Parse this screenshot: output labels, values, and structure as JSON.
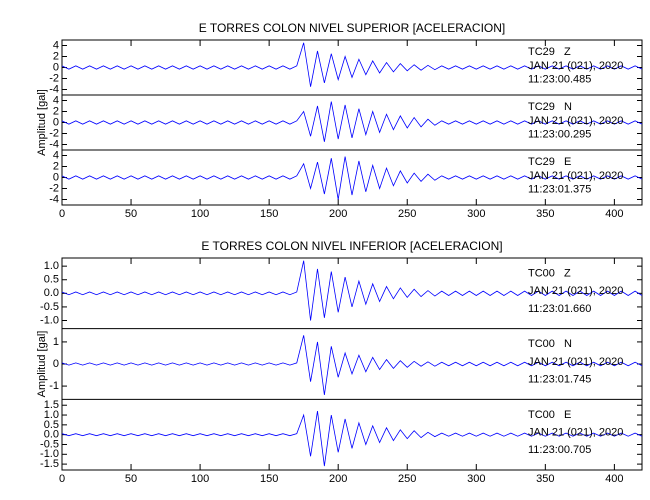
{
  "chart_data": [
    {
      "type": "line",
      "title": "E TORRES COLON NIVEL SUPERIOR [ACELERACION]",
      "ylabel": "Amplitud [gal]",
      "x": [
        0,
        5,
        10,
        15,
        20,
        25,
        30,
        35,
        40,
        45,
        50,
        55,
        60,
        65,
        70,
        75,
        80,
        85,
        90,
        95,
        100,
        105,
        110,
        115,
        120,
        125,
        130,
        135,
        140,
        145,
        150,
        155,
        160,
        165,
        170,
        175,
        180,
        185,
        190,
        195,
        200,
        205,
        210,
        215,
        220,
        225,
        230,
        235,
        240,
        245,
        250,
        255,
        260,
        265,
        270,
        275,
        280,
        285,
        290,
        295,
        300,
        305,
        310,
        315,
        320,
        325,
        330,
        335,
        340,
        345,
        350,
        355,
        360,
        365,
        370,
        375,
        380,
        385,
        390,
        395,
        400,
        405,
        410,
        415,
        420
      ],
      "xlim": [
        0,
        420
      ],
      "xticks": [
        0,
        50,
        100,
        150,
        200,
        250,
        300,
        350,
        400
      ],
      "panels": [
        {
          "station": "TC29",
          "component": "Z",
          "date": "JAN 21 (021), 2020",
          "time": "11:23:00.485",
          "color": "#0000ff",
          "ylim": [
            -5,
            5
          ],
          "yticks": [
            -4,
            -2,
            0,
            2,
            4
          ],
          "values": [
            0.3,
            -0.3,
            0.3,
            -0.3,
            0.3,
            -0.3,
            0.3,
            -0.3,
            0.3,
            -0.3,
            0.3,
            -0.3,
            0.3,
            -0.3,
            0.3,
            -0.3,
            0.3,
            -0.3,
            0.3,
            -0.3,
            0.3,
            -0.3,
            0.3,
            -0.3,
            0.3,
            -0.3,
            0.3,
            -0.3,
            0.3,
            -0.3,
            0.3,
            -0.3,
            0.3,
            -0.3,
            0.3,
            4.5,
            -3.5,
            3,
            -2.8,
            2.5,
            -2.2,
            2,
            -1.8,
            1.5,
            -1.3,
            1.2,
            -1,
            0.9,
            -0.8,
            0.7,
            -0.6,
            0.5,
            -0.5,
            0.4,
            -0.4,
            0.3,
            -0.3,
            0.3,
            -0.3,
            0.3,
            -0.3,
            0.3,
            -0.3,
            0.3,
            -0.3,
            0.3,
            -0.3,
            0.3,
            -0.3,
            0.3,
            -0.3,
            0.3,
            -0.3,
            0.3,
            -0.3,
            0.3,
            -0.3,
            0.3,
            -0.3,
            0.3,
            -0.3,
            0.3,
            -0.3,
            0.3,
            -0.3
          ]
        },
        {
          "station": "TC29",
          "component": "N",
          "date": "JAN 21 (021), 2020",
          "time": "11:23:00.295",
          "color": "#0000ff",
          "ylim": [
            -5,
            5
          ],
          "yticks": [
            -4,
            -2,
            0,
            2,
            4
          ],
          "values": [
            0.3,
            -0.3,
            0.3,
            -0.3,
            0.3,
            -0.3,
            0.3,
            -0.3,
            0.3,
            -0.3,
            0.3,
            -0.3,
            0.3,
            -0.3,
            0.3,
            -0.3,
            0.3,
            -0.3,
            0.3,
            -0.3,
            0.3,
            -0.3,
            0.3,
            -0.3,
            0.3,
            -0.3,
            0.3,
            -0.3,
            0.3,
            -0.3,
            0.3,
            -0.3,
            0.3,
            -0.3,
            0.3,
            2,
            -2.5,
            3,
            -3.5,
            3.8,
            -3,
            3.2,
            -2.8,
            2.5,
            -2.2,
            2,
            -1.8,
            1.5,
            -1.3,
            1.2,
            -1,
            0.9,
            -0.8,
            0.6,
            -0.5,
            0.3,
            -0.3,
            0.3,
            -0.3,
            0.3,
            -0.3,
            0.3,
            -0.3,
            0.3,
            -0.3,
            0.3,
            -0.3,
            0.3,
            -0.3,
            0.3,
            -0.3,
            0.3,
            -0.3,
            0.3,
            -0.3,
            0.3,
            -0.3,
            0.3,
            -0.3,
            0.3,
            -0.3,
            0.3,
            -0.3,
            0.3,
            -0.3
          ]
        },
        {
          "station": "TC29",
          "component": "E",
          "date": "JAN 21 (021), 2020",
          "time": "11:23:01.375",
          "color": "#0000ff",
          "ylim": [
            -5,
            5
          ],
          "yticks": [
            -4,
            -2,
            0,
            2,
            4
          ],
          "values": [
            0.3,
            -0.3,
            0.3,
            -0.3,
            0.3,
            -0.3,
            0.3,
            -0.3,
            0.3,
            -0.3,
            0.3,
            -0.3,
            0.3,
            -0.3,
            0.3,
            -0.3,
            0.3,
            -0.3,
            0.3,
            -0.3,
            0.3,
            -0.3,
            0.3,
            -0.3,
            0.3,
            -0.3,
            0.3,
            -0.3,
            0.3,
            -0.3,
            0.3,
            -0.3,
            0.3,
            -0.3,
            0.3,
            2.5,
            -2,
            2.8,
            -3,
            3.5,
            -4,
            3.8,
            -3.2,
            3,
            -2.6,
            2.2,
            -2,
            1.7,
            -1.5,
            1.2,
            -1,
            0.8,
            -0.7,
            0.6,
            -0.5,
            0.3,
            -0.3,
            0.3,
            -0.3,
            0.3,
            -0.3,
            0.3,
            -0.3,
            0.3,
            -0.3,
            0.3,
            -0.3,
            0.3,
            -0.3,
            0.3,
            -0.3,
            0.3,
            -0.3,
            0.3,
            -0.3,
            0.3,
            -0.3,
            0.3,
            -0.3,
            0.3,
            -0.3,
            0.3,
            -0.3,
            0.3,
            -0.3
          ]
        }
      ]
    },
    {
      "type": "line",
      "title": "E TORRES COLON NIVEL INFERIOR [ACELERACION]",
      "ylabel": "Amplitud [gal]",
      "x": [
        0,
        5,
        10,
        15,
        20,
        25,
        30,
        35,
        40,
        45,
        50,
        55,
        60,
        65,
        70,
        75,
        80,
        85,
        90,
        95,
        100,
        105,
        110,
        115,
        120,
        125,
        130,
        135,
        140,
        145,
        150,
        155,
        160,
        165,
        170,
        175,
        180,
        185,
        190,
        195,
        200,
        205,
        210,
        215,
        220,
        225,
        230,
        235,
        240,
        245,
        250,
        255,
        260,
        265,
        270,
        275,
        280,
        285,
        290,
        295,
        300,
        305,
        310,
        315,
        320,
        325,
        330,
        335,
        340,
        345,
        350,
        355,
        360,
        365,
        370,
        375,
        380,
        385,
        390,
        395,
        400,
        405,
        410,
        415,
        420
      ],
      "xlim": [
        0,
        420
      ],
      "xticks": [
        0,
        50,
        100,
        150,
        200,
        250,
        300,
        350,
        400
      ],
      "panels": [
        {
          "station": "TC00",
          "component": "Z",
          "date": "JAN 21 (021), 2020",
          "time": "11:23:01.660",
          "color": "#0000ff",
          "ylim": [
            -1.3,
            1.3
          ],
          "yticks": [
            {
              "value": -1,
              "label": "-1.0"
            },
            -0.5,
            {
              "value": 0,
              "label": "0.0"
            },
            0.5,
            {
              "value": 1,
              "label": "1.0"
            }
          ],
          "values": [
            0.05,
            -0.05,
            0.05,
            -0.05,
            0.05,
            -0.05,
            0.05,
            -0.05,
            0.05,
            -0.05,
            0.05,
            -0.05,
            0.05,
            -0.05,
            0.05,
            -0.05,
            0.05,
            -0.05,
            0.05,
            -0.05,
            0.05,
            -0.05,
            0.05,
            -0.05,
            0.05,
            -0.05,
            0.05,
            -0.05,
            0.05,
            -0.05,
            0.05,
            -0.05,
            0.05,
            -0.05,
            0.05,
            1.2,
            -1,
            0.9,
            -0.9,
            0.8,
            -0.7,
            0.6,
            -0.5,
            0.45,
            -0.4,
            0.35,
            -0.3,
            0.25,
            -0.2,
            0.2,
            -0.15,
            0.15,
            -0.12,
            0.1,
            -0.1,
            0.08,
            -0.08,
            0.08,
            -0.08,
            0.08,
            -0.08,
            0.08,
            -0.08,
            0.08,
            -0.08,
            0.08,
            -0.08,
            0.08,
            -0.08,
            0.08,
            -0.08,
            0.08,
            -0.08,
            0.08,
            -0.08,
            0.08,
            -0.08,
            0.08,
            -0.08,
            0.08,
            -0.08,
            0.08,
            -0.08,
            0.08,
            -0.08
          ]
        },
        {
          "station": "TC00",
          "component": "N",
          "date": "JAN 21 (021), 2020",
          "time": "11:23:01.745",
          "color": "#0000ff",
          "ylim": [
            -1.6,
            1.6
          ],
          "yticks": [
            -1,
            0,
            1
          ],
          "values": [
            0.05,
            -0.05,
            0.05,
            -0.05,
            0.05,
            -0.05,
            0.05,
            -0.05,
            0.05,
            -0.05,
            0.05,
            -0.05,
            0.05,
            -0.05,
            0.05,
            -0.05,
            0.05,
            -0.05,
            0.05,
            -0.05,
            0.05,
            -0.05,
            0.05,
            -0.05,
            0.05,
            -0.05,
            0.05,
            -0.05,
            0.05,
            -0.05,
            0.05,
            -0.05,
            0.05,
            -0.05,
            0.05,
            1.3,
            -0.8,
            1,
            -1.4,
            0.8,
            -0.6,
            0.5,
            -0.45,
            0.4,
            -0.35,
            0.3,
            -0.25,
            0.2,
            -0.2,
            0.15,
            -0.15,
            0.12,
            -0.1,
            0.1,
            -0.1,
            0.08,
            -0.08,
            0.08,
            -0.08,
            0.08,
            -0.08,
            0.08,
            -0.08,
            0.08,
            -0.08,
            0.08,
            -0.08,
            0.08,
            -0.08,
            0.08,
            -0.08,
            0.08,
            -0.08,
            0.08,
            -0.08,
            0.08,
            -0.08,
            0.08,
            -0.08,
            0.08,
            -0.08,
            0.08,
            -0.08,
            0.08,
            -0.08
          ]
        },
        {
          "station": "TC00",
          "component": "E",
          "date": "JAN 21 (021), 2020",
          "time": "11:23:00.705",
          "color": "#0000ff",
          "ylim": [
            -1.8,
            1.8
          ],
          "yticks": [
            {
              "value": -1.5,
              "label": "-1.5"
            },
            {
              "value": -1,
              "label": "-1.0"
            },
            -0.5,
            {
              "value": 0,
              "label": "0.0"
            },
            0.5,
            {
              "value": 1,
              "label": "1.0"
            },
            1.5
          ],
          "values": [
            0.05,
            -0.05,
            0.05,
            -0.05,
            0.05,
            -0.05,
            0.05,
            -0.05,
            0.05,
            -0.05,
            0.05,
            -0.05,
            0.05,
            -0.05,
            0.05,
            -0.05,
            0.05,
            -0.05,
            0.05,
            -0.05,
            0.05,
            -0.05,
            0.05,
            -0.05,
            0.05,
            -0.05,
            0.05,
            -0.05,
            0.05,
            -0.05,
            0.05,
            -0.05,
            0.05,
            -0.05,
            0.05,
            1,
            -1.1,
            1.2,
            -1.6,
            1,
            -0.9,
            0.8,
            -0.7,
            0.6,
            -0.5,
            0.45,
            -0.4,
            0.35,
            -0.3,
            0.25,
            -0.2,
            0.2,
            -0.15,
            0.12,
            -0.1,
            0.08,
            -0.08,
            0.08,
            -0.08,
            0.08,
            -0.08,
            0.08,
            -0.08,
            0.08,
            -0.08,
            0.08,
            -0.08,
            0.08,
            -0.08,
            0.08,
            -0.08,
            0.08,
            -0.08,
            0.08,
            -0.08,
            0.08,
            -0.08,
            0.08,
            -0.08,
            0.08,
            -0.08,
            0.08,
            -0.08,
            0.08,
            -0.08
          ]
        }
      ]
    }
  ]
}
